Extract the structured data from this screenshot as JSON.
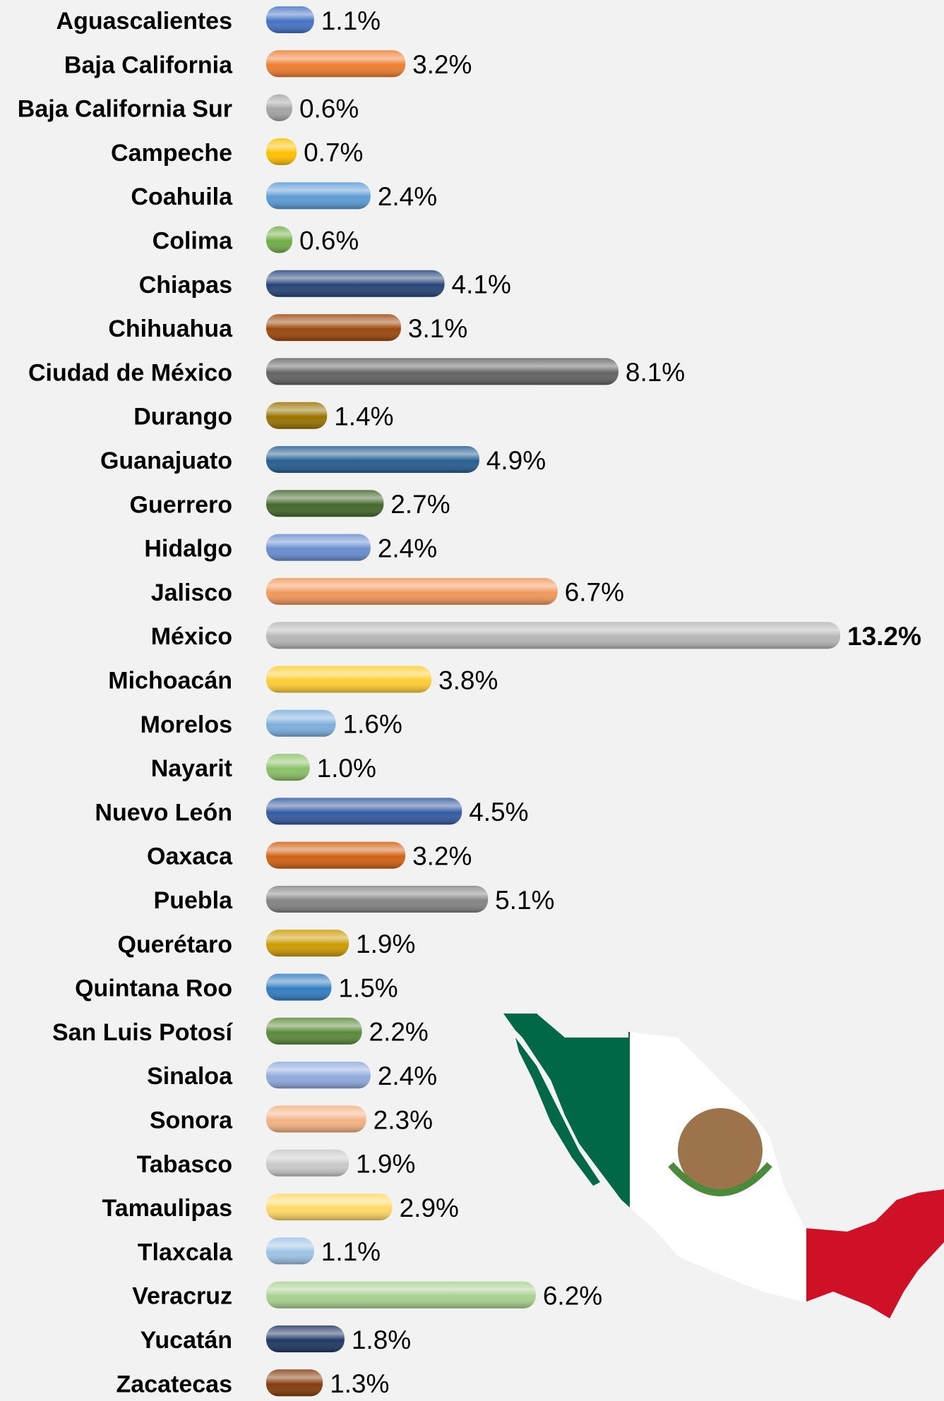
{
  "chart_data": {
    "type": "bar",
    "orientation": "horizontal",
    "categories": [
      "Aguascalientes",
      "Baja California",
      "Baja California Sur",
      "Campeche",
      "Coahuila",
      "Colima",
      "Chiapas",
      "Chihuahua",
      "Ciudad de México",
      "Durango",
      "Guanajuato",
      "Guerrero",
      "Hidalgo",
      "Jalisco",
      "México",
      "Michoacán",
      "Morelos",
      "Nayarit",
      "Nuevo León",
      "Oaxaca",
      "Puebla",
      "Querétaro",
      "Quintana Roo",
      "San Luis Potosí",
      "Sinaloa",
      "Sonora",
      "Tabasco",
      "Tamaulipas",
      "Tlaxcala",
      "Veracruz",
      "Yucatán",
      "Zacatecas"
    ],
    "values": [
      1.1,
      3.2,
      0.6,
      0.7,
      2.4,
      0.6,
      4.1,
      3.1,
      8.1,
      1.4,
      4.9,
      2.7,
      2.4,
      6.7,
      13.2,
      3.8,
      1.6,
      1.0,
      4.5,
      3.2,
      5.1,
      1.9,
      1.5,
      2.2,
      2.4,
      2.3,
      1.9,
      2.9,
      1.1,
      6.2,
      1.8,
      1.3
    ],
    "value_labels": [
      "1.1%",
      "3.2%",
      "0.6%",
      "0.7%",
      "2.4%",
      "0.6%",
      "4.1%",
      "3.1%",
      "8.1%",
      "1.4%",
      "4.9%",
      "2.7%",
      "2.4%",
      "6.7%",
      "13.2%",
      "3.8%",
      "1.6%",
      "1.0%",
      "4.5%",
      "3.2%",
      "5.1%",
      "1.9%",
      "1.5%",
      "2.2%",
      "2.4%",
      "2.3%",
      "1.9%",
      "2.9%",
      "1.1%",
      "6.2%",
      "1.8%",
      "1.3%"
    ],
    "colors": [
      "#4472c4",
      "#ed7d31",
      "#a5a5a5",
      "#ffc000",
      "#5b9bd5",
      "#70ad47",
      "#264478",
      "#9e480e",
      "#636363",
      "#997300",
      "#255e91",
      "#43682b",
      "#698ed0",
      "#f1975a",
      "#b7b7b7",
      "#ffcd33",
      "#7cafdd",
      "#8cc168",
      "#335aa1",
      "#d26012",
      "#848484",
      "#cc9a00",
      "#327dc2",
      "#5a8a39",
      "#8faadc",
      "#f4b183",
      "#c9c9c9",
      "#ffd966",
      "#9dc3e6",
      "#a9d18e",
      "#203864",
      "#843c0c"
    ]
  }
}
